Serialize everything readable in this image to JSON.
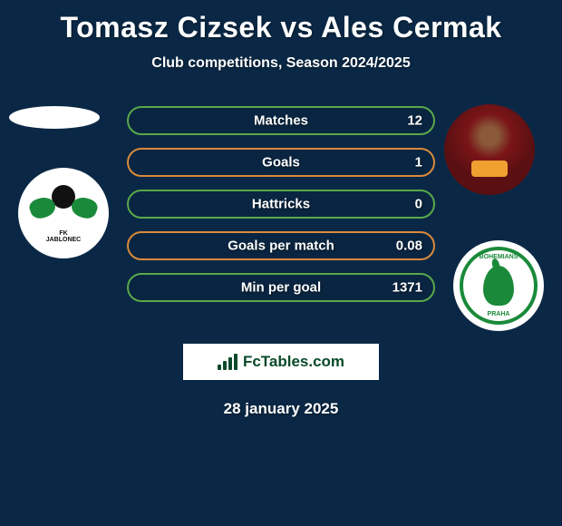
{
  "title": "Tomasz Cizsek vs Ales Cermak",
  "subtitle": "Club competitions, Season 2024/2025",
  "date": "28 january 2025",
  "brand": "FcTables.com",
  "colors": {
    "background": "#0a2845",
    "text": "#ffffff",
    "bar_border_1": "#5aa84a",
    "bar_border_2": "#d98a3a",
    "brand_green": "#0a4a2a",
    "logo_green": "#1a8a3a"
  },
  "left_club": {
    "name": "FK Jablonec",
    "label_top": "FK",
    "label_bottom": "JABLONEC"
  },
  "right_club": {
    "name": "Bohemians Praha",
    "label_top": "BOHEMIANS",
    "label_bottom": "PRAHA"
  },
  "stats": [
    {
      "label": "Matches",
      "value": "12",
      "border": "#5aa84a"
    },
    {
      "label": "Goals",
      "value": "1",
      "border": "#d98a3a"
    },
    {
      "label": "Hattricks",
      "value": "0",
      "border": "#5aa84a"
    },
    {
      "label": "Goals per match",
      "value": "0.08",
      "border": "#d98a3a"
    },
    {
      "label": "Min per goal",
      "value": "1371",
      "border": "#5aa84a"
    }
  ],
  "bar_style": {
    "height": 32,
    "border_radius": 16,
    "border_width": 2,
    "gap": 14,
    "label_fontsize": 15,
    "value_fontsize": 15
  },
  "fctables_bars": [
    6,
    10,
    14,
    18
  ]
}
